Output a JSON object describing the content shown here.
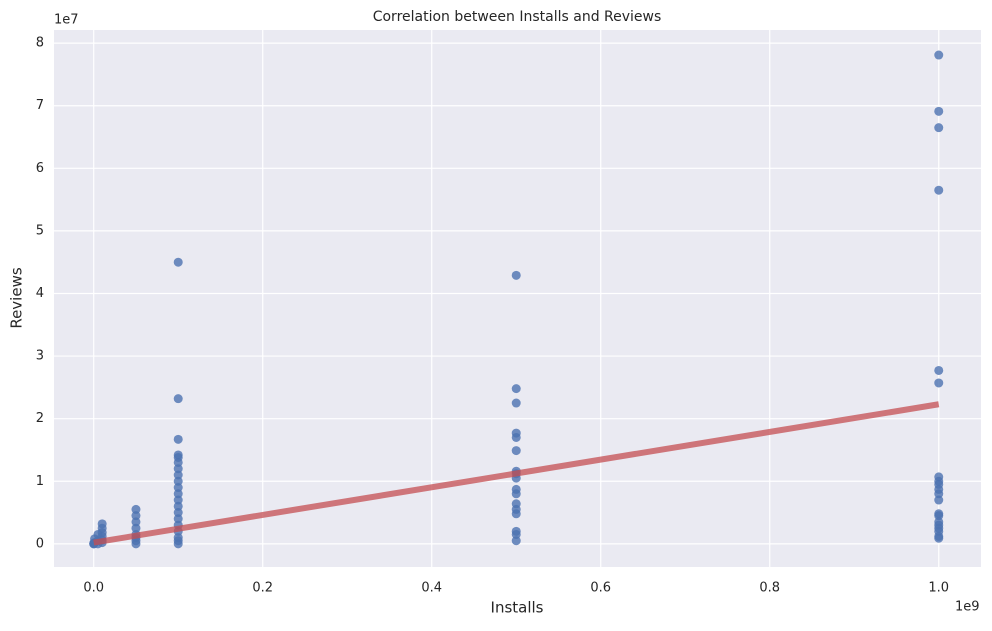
{
  "chart_data": {
    "type": "scatter",
    "title": "Correlation between Installs and Reviews",
    "x_label": "Installs",
    "y_label": "Reviews",
    "x_offset_label": "1e9",
    "y_offset_label": "1e7",
    "grid": true,
    "xlim": [
      -47000000,
      1050000000
    ],
    "ylim": [
      -3700000,
      82100000
    ],
    "xticks": [
      {
        "value": 0,
        "label": "0.0"
      },
      {
        "value": 200000000,
        "label": "0.2"
      },
      {
        "value": 400000000,
        "label": "0.4"
      },
      {
        "value": 600000000,
        "label": "0.6"
      },
      {
        "value": 800000000,
        "label": "0.8"
      },
      {
        "value": 1000000000,
        "label": "1.0"
      }
    ],
    "yticks": [
      0,
      {
        "value": 10000000,
        "label": "1"
      },
      {
        "value": 20000000,
        "label": "2"
      },
      {
        "value": 30000000,
        "label": "3"
      },
      {
        "value": 40000000,
        "label": "4"
      },
      {
        "value": 50000000,
        "label": "5"
      },
      {
        "value": 60000000,
        "label": "6"
      },
      {
        "value": 70000000,
        "label": "7"
      },
      {
        "value": 80000000,
        "label": "8"
      }
    ],
    "series": [
      {
        "type": "scatter",
        "color": "#4c72b0",
        "x": [
          1000000000,
          1000000000,
          1000000000,
          1000000000,
          1000000000,
          1000000000,
          1000000000,
          1000000000,
          1000000000,
          1000000000,
          1000000000,
          1000000000,
          1000000000,
          1000000000,
          1000000000,
          1000000000,
          1000000000,
          1000000000,
          1000000000,
          1000000000,
          500000000,
          500000000,
          500000000,
          500000000,
          500000000,
          500000000,
          500000000,
          500000000,
          500000000,
          500000000,
          500000000,
          500000000,
          500000000,
          500000000,
          500000000,
          500000000,
          500000000,
          100000000,
          100000000,
          100000000,
          100000000,
          100000000,
          100000000,
          100000000,
          100000000,
          100000000,
          100000000,
          100000000,
          100000000,
          100000000,
          100000000,
          100000000,
          100000000,
          100000000,
          100000000,
          100000000,
          100000000,
          50000000,
          50000000,
          50000000,
          50000000,
          50000000,
          50000000,
          50000000,
          50000000,
          10000000,
          10000000,
          10000000,
          10000000,
          10000000,
          10000000,
          5000000,
          5000000,
          5000000,
          1000000,
          1000000,
          100000,
          100000,
          0
        ],
        "values": [
          78100000,
          69100000,
          66500000,
          56500000,
          27700000,
          25700000,
          10700000,
          10000000,
          9500000,
          8700000,
          8000000,
          7000000,
          4800000,
          4500000,
          3500000,
          3000000,
          2500000,
          2000000,
          1200000,
          900000,
          42900000,
          24800000,
          22500000,
          17700000,
          17000000,
          14900000,
          11600000,
          11200000,
          10500000,
          8700000,
          8000000,
          6400000,
          5500000,
          4800000,
          2000000,
          1500000,
          500000,
          45000000,
          23200000,
          16700000,
          14200000,
          13800000,
          13000000,
          12000000,
          11000000,
          10000000,
          9000000,
          8000000,
          7000000,
          6000000,
          5000000,
          4000000,
          3000000,
          2000000,
          1000000,
          500000,
          0,
          5500000,
          4500000,
          3500000,
          2500000,
          1500000,
          1000000,
          500000,
          0,
          3200000,
          2500000,
          1800000,
          1200000,
          600000,
          200000,
          1500000,
          500000,
          0,
          800000,
          200000,
          100000,
          0,
          0
        ]
      },
      {
        "type": "line",
        "color": "#c44e52",
        "x": [
          0,
          1000000000
        ],
        "values": [
          200000,
          22300000
        ]
      }
    ]
  }
}
